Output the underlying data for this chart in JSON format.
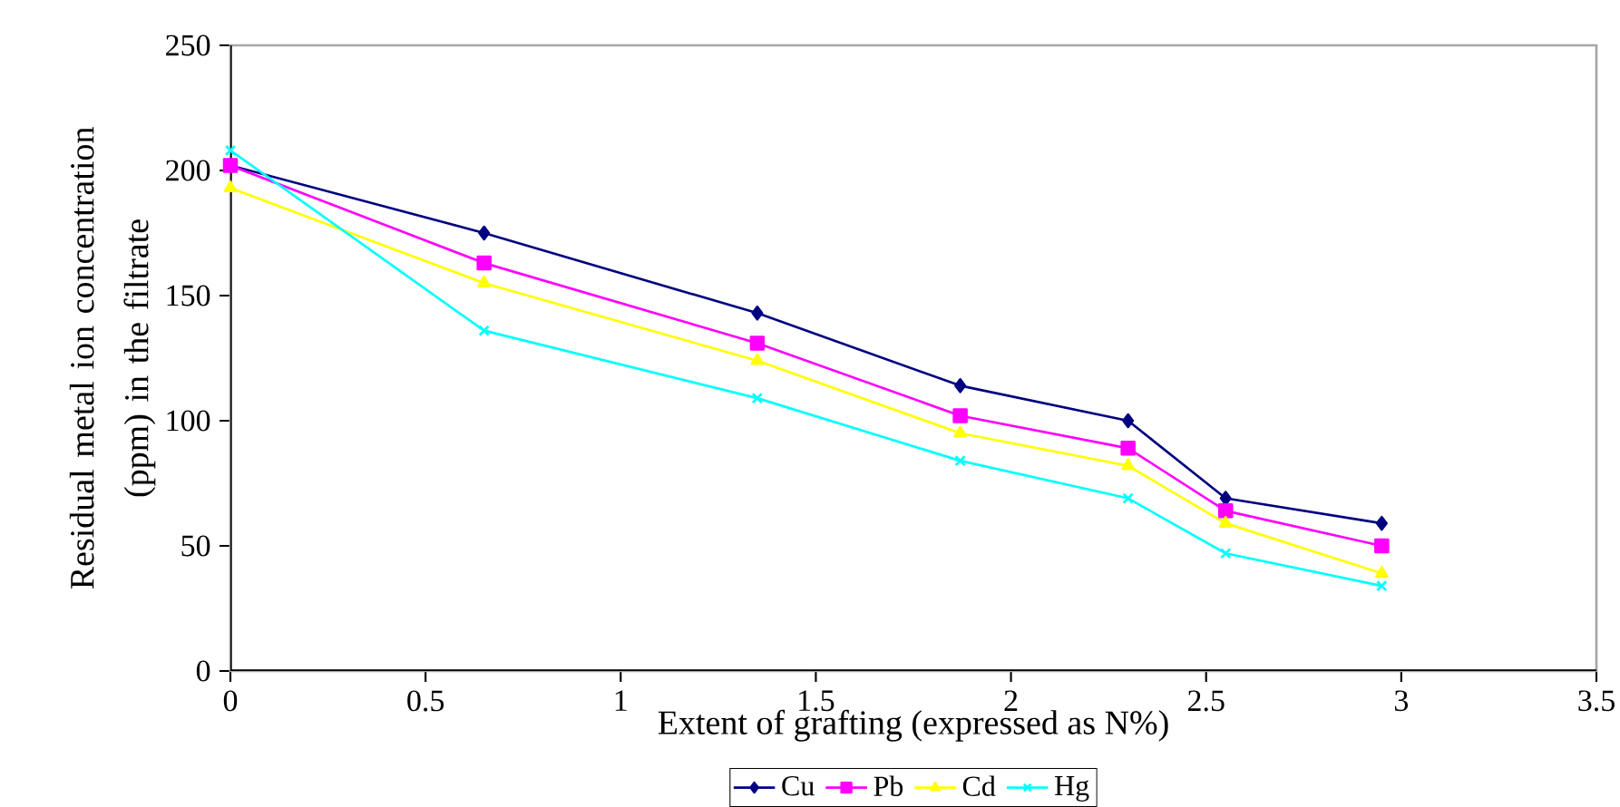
{
  "chart_data": {
    "type": "line",
    "xlabel": "Extent of grafting (expressed as N%)",
    "ylabel": "Residual metal ion concentration (ppm) in the filtrate",
    "x": [
      0,
      0.65,
      1.35,
      1.87,
      2.3,
      2.55,
      2.95
    ],
    "series": [
      {
        "name": "Cu",
        "color": "#000080",
        "marker": "diamond",
        "values": [
          202,
          175,
          143,
          114,
          100,
          69,
          59
        ]
      },
      {
        "name": "Pb",
        "color": "#ff00ff",
        "marker": "square",
        "values": [
          202,
          163,
          131,
          102,
          89,
          64,
          50
        ]
      },
      {
        "name": "Cd",
        "color": "#ffff00",
        "marker": "triangle",
        "values": [
          193,
          155,
          124,
          95,
          82,
          59,
          39
        ]
      },
      {
        "name": "Hg",
        "color": "#00ffff",
        "marker": "cross",
        "values": [
          208,
          136,
          109,
          84,
          69,
          47,
          34
        ]
      }
    ],
    "xlim": [
      0,
      3.5
    ],
    "xticks": [
      0,
      0.5,
      1,
      1.5,
      2,
      2.5,
      3,
      3.5
    ],
    "ylim": [
      0,
      250
    ],
    "yticks": [
      0,
      50,
      100,
      150,
      200,
      250
    ],
    "grid": false,
    "legend": "bottom",
    "line_style": "solid"
  }
}
